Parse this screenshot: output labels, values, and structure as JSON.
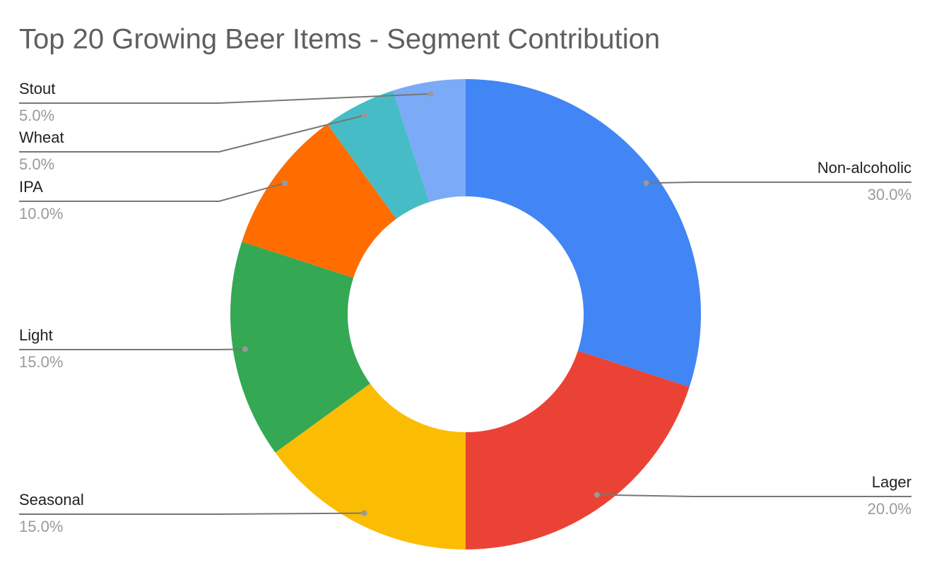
{
  "chart_data": {
    "type": "donut",
    "title": "Top 20 Growing Beer Items - Segment Contribution",
    "categories": [
      "Non-alcoholic",
      "Lager",
      "Seasonal",
      "Light",
      "IPA",
      "Wheat",
      "Stout"
    ],
    "values": [
      30,
      20,
      15,
      15,
      10,
      5,
      5
    ],
    "value_labels": [
      "30.0%",
      "20.0%",
      "15.0%",
      "15.0%",
      "10.0%",
      "5.0%",
      "5.0%"
    ],
    "colors": [
      "#4285f4",
      "#ea4335",
      "#fbbc04",
      "#34a853",
      "#ff6d01",
      "#46bdc6",
      "#7baaf7"
    ]
  }
}
